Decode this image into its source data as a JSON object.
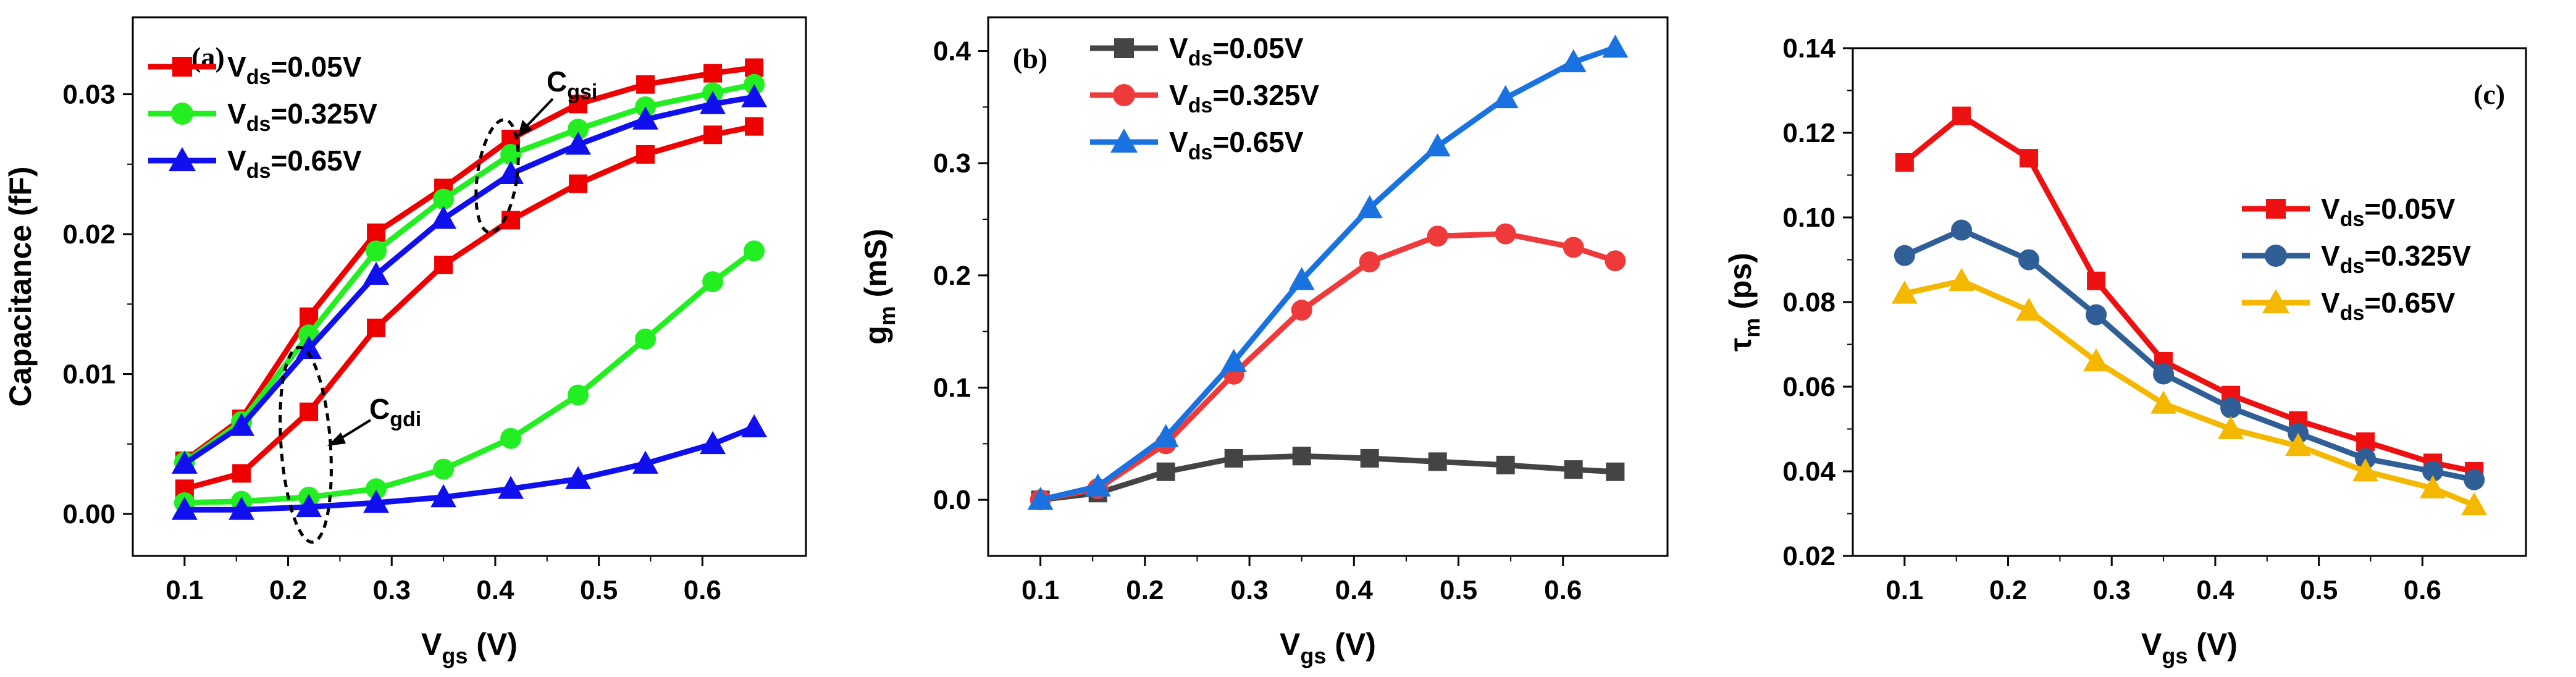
{
  "chart_data": [
    {
      "type": "line",
      "panel_label": "(a)",
      "xlabel": {
        "main": "V",
        "sub": "gs",
        "unit": " (V)"
      },
      "ylabel": {
        "main": "Capacitance (fF)",
        "sub": "",
        "unit": ""
      },
      "xlim": [
        0.05,
        0.7
      ],
      "ylim": [
        -0.003,
        0.0355
      ],
      "xticks": [
        0.1,
        0.2,
        0.3,
        0.4,
        0.5,
        0.6
      ],
      "xtick_labels": [
        "0.1",
        "0.2",
        "0.3",
        "0.4",
        "0.5",
        "0.6"
      ],
      "yticks": [
        0.0,
        0.01,
        0.02,
        0.03
      ],
      "ytick_labels": [
        "0.00",
        "0.01",
        "0.02",
        "0.03"
      ],
      "x": [
        0.1,
        0.155,
        0.22,
        0.285,
        0.35,
        0.415,
        0.48,
        0.545,
        0.61,
        0.65
      ],
      "legend_position": "top-left",
      "series": [
        {
          "name": "Vds=0.05V",
          "legend_main": "V",
          "legend_sub": "ds",
          "legend_tail": "=0.05V",
          "color": "#ee0000",
          "marker": "square",
          "role": "Cgsi",
          "values": [
            0.0038,
            0.0068,
            0.0141,
            0.0201,
            0.0233,
            0.0268,
            0.0293,
            0.0307,
            0.0315,
            0.0319
          ]
        },
        {
          "name": "Vds=0.325V",
          "legend_main": "V",
          "legend_sub": "ds",
          "legend_tail": "=0.325V",
          "color": "#22ee22",
          "marker": "circle",
          "role": "Cgsi",
          "values": [
            0.0037,
            0.0066,
            0.0128,
            0.0188,
            0.0225,
            0.0257,
            0.0275,
            0.0291,
            0.0301,
            0.0307
          ]
        },
        {
          "name": "Vds=0.65V",
          "legend_main": "V",
          "legend_sub": "ds",
          "legend_tail": "=0.65V",
          "color": "#1010ee",
          "marker": "triangle",
          "role": "Cgsi",
          "values": [
            0.0036,
            0.0063,
            0.0118,
            0.0171,
            0.0211,
            0.0243,
            0.0264,
            0.0282,
            0.0293,
            0.0298
          ]
        },
        {
          "name": "Vds=0.05V Cgdi",
          "color": "#ee0000",
          "marker": "square",
          "role": "Cgdi",
          "in_legend": false,
          "values": [
            0.0018,
            0.0029,
            0.0073,
            0.0133,
            0.0178,
            0.021,
            0.0236,
            0.0257,
            0.0271,
            0.0277
          ]
        },
        {
          "name": "Vds=0.325V Cgdi",
          "color": "#22ee22",
          "marker": "circle",
          "role": "Cgdi",
          "in_legend": false,
          "values": [
            0.0008,
            0.0009,
            0.0012,
            0.0018,
            0.0032,
            0.0054,
            0.0085,
            0.0125,
            0.0166,
            0.0188
          ]
        },
        {
          "name": "Vds=0.65V Cgdi",
          "color": "#1010ee",
          "marker": "triangle",
          "role": "Cgdi",
          "in_legend": false,
          "values": [
            0.0003,
            0.0003,
            0.0005,
            0.0008,
            0.0012,
            0.0018,
            0.0025,
            0.0036,
            0.005,
            0.0062
          ]
        }
      ],
      "annotations": [
        {
          "main": "C",
          "sub": "gsi"
        },
        {
          "main": "C",
          "sub": "gdi"
        }
      ]
    },
    {
      "type": "line",
      "panel_label": "(b)",
      "xlabel": {
        "main": "V",
        "sub": "gs",
        "unit": " (V)"
      },
      "ylabel": {
        "main": "g",
        "sub": "m",
        "unit": " (mS)"
      },
      "xlim": [
        0.05,
        0.7
      ],
      "ylim": [
        -0.05,
        0.43
      ],
      "xticks": [
        0.1,
        0.2,
        0.3,
        0.4,
        0.5,
        0.6
      ],
      "xtick_labels": [
        "0.1",
        "0.2",
        "0.3",
        "0.4",
        "0.5",
        "0.6"
      ],
      "yticks": [
        0.0,
        0.1,
        0.2,
        0.3,
        0.4
      ],
      "ytick_labels": [
        "0.0",
        "0.1",
        "0.2",
        "0.3",
        "0.4"
      ],
      "x": [
        0.1,
        0.155,
        0.22,
        0.285,
        0.35,
        0.415,
        0.48,
        0.545,
        0.61,
        0.65
      ],
      "legend_position": "top-left",
      "series": [
        {
          "name": "Vds=0.05V",
          "legend_main": "V",
          "legend_sub": "ds",
          "legend_tail": "=0.05V",
          "color": "#444444",
          "marker": "square",
          "values": [
            0.0,
            0.006,
            0.025,
            0.037,
            0.039,
            0.037,
            0.034,
            0.031,
            0.027,
            0.025
          ]
        },
        {
          "name": "Vds=0.325V",
          "legend_main": "V",
          "legend_sub": "ds",
          "legend_tail": "=0.325V",
          "color": "#ee3a3a",
          "marker": "circle",
          "values": [
            0.0,
            0.01,
            0.05,
            0.112,
            0.169,
            0.212,
            0.235,
            0.237,
            0.225,
            0.213
          ]
        },
        {
          "name": "Vds=0.65V",
          "legend_main": "V",
          "legend_sub": "ds",
          "legend_tail": "=0.65V",
          "color": "#1a72e0",
          "marker": "triangle",
          "values": [
            0.0,
            0.012,
            0.056,
            0.123,
            0.196,
            0.26,
            0.315,
            0.358,
            0.39,
            0.403
          ]
        }
      ]
    },
    {
      "type": "line",
      "panel_label": "(c)",
      "xlabel": {
        "main": "V",
        "sub": "gs",
        "unit": " (V)"
      },
      "ylabel": {
        "main": "τ",
        "sub": "m",
        "unit": " (ps)"
      },
      "xlim": [
        0.05,
        0.7
      ],
      "ylim": [
        0.02,
        0.14
      ],
      "xticks": [
        0.1,
        0.2,
        0.3,
        0.4,
        0.5,
        0.6
      ],
      "xtick_labels": [
        "0.1",
        "0.2",
        "0.3",
        "0.4",
        "0.5",
        "0.6"
      ],
      "yticks": [
        0.02,
        0.04,
        0.06,
        0.08,
        0.1,
        0.12,
        0.14
      ],
      "ytick_labels": [
        "0.02",
        "0.04",
        "0.06",
        "0.08",
        "0.10",
        "0.12",
        "0.14"
      ],
      "x": [
        0.1,
        0.155,
        0.22,
        0.285,
        0.35,
        0.415,
        0.48,
        0.545,
        0.61,
        0.65
      ],
      "legend_position": "center-right",
      "series": [
        {
          "name": "Vds=0.05V",
          "legend_main": "V",
          "legend_sub": "ds",
          "legend_tail": "=0.05V",
          "color": "#ee1111",
          "marker": "square",
          "values": [
            0.113,
            0.124,
            0.114,
            0.085,
            0.066,
            0.058,
            0.052,
            0.047,
            0.042,
            0.04
          ]
        },
        {
          "name": "Vds=0.325V",
          "legend_main": "V",
          "legend_sub": "ds",
          "legend_tail": "=0.325V",
          "color": "#2f5f96",
          "marker": "circle",
          "values": [
            0.091,
            0.097,
            0.09,
            0.077,
            0.063,
            0.055,
            0.049,
            0.043,
            0.04,
            0.038
          ]
        },
        {
          "name": "Vds=0.65V",
          "legend_main": "V",
          "legend_sub": "ds",
          "legend_tail": "=0.65V",
          "color": "#f5b800",
          "marker": "triangle",
          "values": [
            0.082,
            0.085,
            0.078,
            0.066,
            0.056,
            0.05,
            0.046,
            0.04,
            0.036,
            0.032
          ]
        }
      ]
    }
  ]
}
